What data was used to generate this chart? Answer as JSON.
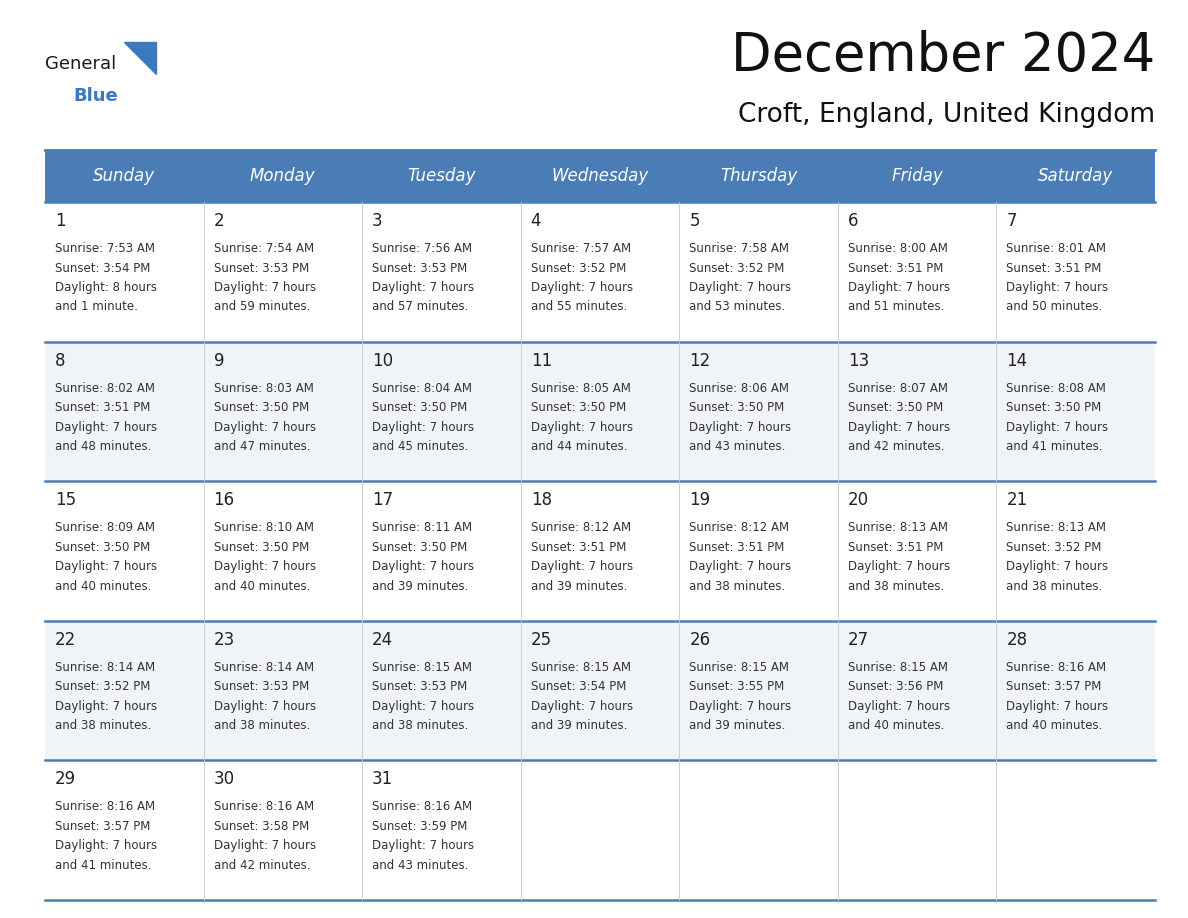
{
  "title": "December 2024",
  "subtitle": "Croft, England, United Kingdom",
  "header_color": "#4a7db5",
  "header_text_color": "#ffffff",
  "row_colors": [
    "#ffffff",
    "#f0f4f8"
  ],
  "border_color": "#4a7db5",
  "days_of_week": [
    "Sunday",
    "Monday",
    "Tuesday",
    "Wednesday",
    "Thursday",
    "Friday",
    "Saturday"
  ],
  "calendar_data": [
    [
      {
        "day": 1,
        "sunrise": "7:53 AM",
        "sunset": "3:54 PM",
        "daylight_h": "8 hours",
        "daylight_m": "and 1 minute."
      },
      {
        "day": 2,
        "sunrise": "7:54 AM",
        "sunset": "3:53 PM",
        "daylight_h": "7 hours",
        "daylight_m": "and 59 minutes."
      },
      {
        "day": 3,
        "sunrise": "7:56 AM",
        "sunset": "3:53 PM",
        "daylight_h": "7 hours",
        "daylight_m": "and 57 minutes."
      },
      {
        "day": 4,
        "sunrise": "7:57 AM",
        "sunset": "3:52 PM",
        "daylight_h": "7 hours",
        "daylight_m": "and 55 minutes."
      },
      {
        "day": 5,
        "sunrise": "7:58 AM",
        "sunset": "3:52 PM",
        "daylight_h": "7 hours",
        "daylight_m": "and 53 minutes."
      },
      {
        "day": 6,
        "sunrise": "8:00 AM",
        "sunset": "3:51 PM",
        "daylight_h": "7 hours",
        "daylight_m": "and 51 minutes."
      },
      {
        "day": 7,
        "sunrise": "8:01 AM",
        "sunset": "3:51 PM",
        "daylight_h": "7 hours",
        "daylight_m": "and 50 minutes."
      }
    ],
    [
      {
        "day": 8,
        "sunrise": "8:02 AM",
        "sunset": "3:51 PM",
        "daylight_h": "7 hours",
        "daylight_m": "and 48 minutes."
      },
      {
        "day": 9,
        "sunrise": "8:03 AM",
        "sunset": "3:50 PM",
        "daylight_h": "7 hours",
        "daylight_m": "and 47 minutes."
      },
      {
        "day": 10,
        "sunrise": "8:04 AM",
        "sunset": "3:50 PM",
        "daylight_h": "7 hours",
        "daylight_m": "and 45 minutes."
      },
      {
        "day": 11,
        "sunrise": "8:05 AM",
        "sunset": "3:50 PM",
        "daylight_h": "7 hours",
        "daylight_m": "and 44 minutes."
      },
      {
        "day": 12,
        "sunrise": "8:06 AM",
        "sunset": "3:50 PM",
        "daylight_h": "7 hours",
        "daylight_m": "and 43 minutes."
      },
      {
        "day": 13,
        "sunrise": "8:07 AM",
        "sunset": "3:50 PM",
        "daylight_h": "7 hours",
        "daylight_m": "and 42 minutes."
      },
      {
        "day": 14,
        "sunrise": "8:08 AM",
        "sunset": "3:50 PM",
        "daylight_h": "7 hours",
        "daylight_m": "and 41 minutes."
      }
    ],
    [
      {
        "day": 15,
        "sunrise": "8:09 AM",
        "sunset": "3:50 PM",
        "daylight_h": "7 hours",
        "daylight_m": "and 40 minutes."
      },
      {
        "day": 16,
        "sunrise": "8:10 AM",
        "sunset": "3:50 PM",
        "daylight_h": "7 hours",
        "daylight_m": "and 40 minutes."
      },
      {
        "day": 17,
        "sunrise": "8:11 AM",
        "sunset": "3:50 PM",
        "daylight_h": "7 hours",
        "daylight_m": "and 39 minutes."
      },
      {
        "day": 18,
        "sunrise": "8:12 AM",
        "sunset": "3:51 PM",
        "daylight_h": "7 hours",
        "daylight_m": "and 39 minutes."
      },
      {
        "day": 19,
        "sunrise": "8:12 AM",
        "sunset": "3:51 PM",
        "daylight_h": "7 hours",
        "daylight_m": "and 38 minutes."
      },
      {
        "day": 20,
        "sunrise": "8:13 AM",
        "sunset": "3:51 PM",
        "daylight_h": "7 hours",
        "daylight_m": "and 38 minutes."
      },
      {
        "day": 21,
        "sunrise": "8:13 AM",
        "sunset": "3:52 PM",
        "daylight_h": "7 hours",
        "daylight_m": "and 38 minutes."
      }
    ],
    [
      {
        "day": 22,
        "sunrise": "8:14 AM",
        "sunset": "3:52 PM",
        "daylight_h": "7 hours",
        "daylight_m": "and 38 minutes."
      },
      {
        "day": 23,
        "sunrise": "8:14 AM",
        "sunset": "3:53 PM",
        "daylight_h": "7 hours",
        "daylight_m": "and 38 minutes."
      },
      {
        "day": 24,
        "sunrise": "8:15 AM",
        "sunset": "3:53 PM",
        "daylight_h": "7 hours",
        "daylight_m": "and 38 minutes."
      },
      {
        "day": 25,
        "sunrise": "8:15 AM",
        "sunset": "3:54 PM",
        "daylight_h": "7 hours",
        "daylight_m": "and 39 minutes."
      },
      {
        "day": 26,
        "sunrise": "8:15 AM",
        "sunset": "3:55 PM",
        "daylight_h": "7 hours",
        "daylight_m": "and 39 minutes."
      },
      {
        "day": 27,
        "sunrise": "8:15 AM",
        "sunset": "3:56 PM",
        "daylight_h": "7 hours",
        "daylight_m": "and 40 minutes."
      },
      {
        "day": 28,
        "sunrise": "8:16 AM",
        "sunset": "3:57 PM",
        "daylight_h": "7 hours",
        "daylight_m": "and 40 minutes."
      }
    ],
    [
      {
        "day": 29,
        "sunrise": "8:16 AM",
        "sunset": "3:57 PM",
        "daylight_h": "7 hours",
        "daylight_m": "and 41 minutes."
      },
      {
        "day": 30,
        "sunrise": "8:16 AM",
        "sunset": "3:58 PM",
        "daylight_h": "7 hours",
        "daylight_m": "and 42 minutes."
      },
      {
        "day": 31,
        "sunrise": "8:16 AM",
        "sunset": "3:59 PM",
        "daylight_h": "7 hours",
        "daylight_m": "and 43 minutes."
      },
      null,
      null,
      null,
      null
    ]
  ],
  "title_fontsize": 38,
  "subtitle_fontsize": 19,
  "day_number_fontsize": 12,
  "cell_text_fontsize": 8.5,
  "header_fontsize": 12,
  "logo_general_fontsize": 13,
  "logo_blue_fontsize": 13
}
